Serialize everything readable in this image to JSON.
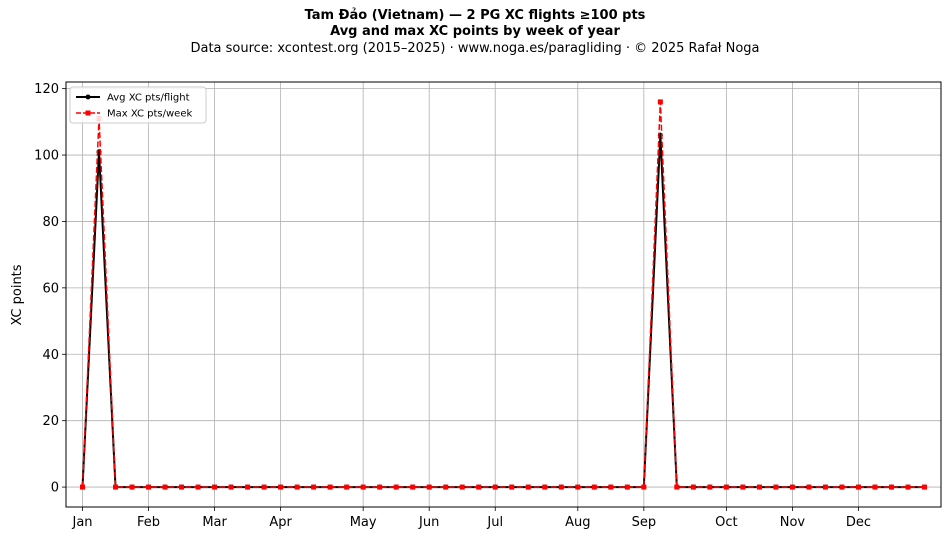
{
  "chart_data": {
    "type": "line",
    "title": "Tam Đảo (Vietnam)  —  2 PG XC flights ≥100 pts",
    "subtitle": "Avg and max XC points by week of year",
    "source_line": "Data source: xcontest.org (2015–2025)  ·  www.noga.es/paragliding  ·  © 2025 Rafał Noga",
    "xlabel": "",
    "ylabel": "XC points",
    "xlim": [
      0,
      53
    ],
    "ylim": [
      -6,
      122
    ],
    "grid": true,
    "legend_position": "top-left",
    "y_ticks": [
      0,
      20,
      40,
      60,
      80,
      100,
      120
    ],
    "x_ticks": [
      {
        "week": 1,
        "label": "Jan"
      },
      {
        "week": 5,
        "label": "Feb"
      },
      {
        "week": 9,
        "label": "Mar"
      },
      {
        "week": 13,
        "label": "Apr"
      },
      {
        "week": 18,
        "label": "May"
      },
      {
        "week": 22,
        "label": "Jun"
      },
      {
        "week": 26,
        "label": "Jul"
      },
      {
        "week": 31,
        "label": "Aug"
      },
      {
        "week": 35,
        "label": "Sep"
      },
      {
        "week": 40,
        "label": "Oct"
      },
      {
        "week": 44,
        "label": "Nov"
      },
      {
        "week": 48,
        "label": "Dec"
      }
    ],
    "x": [
      1,
      2,
      3,
      4,
      5,
      6,
      7,
      8,
      9,
      10,
      11,
      12,
      13,
      14,
      15,
      16,
      17,
      18,
      19,
      20,
      21,
      22,
      23,
      24,
      25,
      26,
      27,
      28,
      29,
      30,
      31,
      32,
      33,
      34,
      35,
      36,
      37,
      38,
      39,
      40,
      41,
      42,
      43,
      44,
      45,
      46,
      47,
      48,
      49,
      50,
      51,
      52
    ],
    "series": [
      {
        "name": "Avg XC pts/flight",
        "color": "#000000",
        "style": "solid",
        "marker": "circle",
        "values": [
          0,
          101,
          0,
          0,
          0,
          0,
          0,
          0,
          0,
          0,
          0,
          0,
          0,
          0,
          0,
          0,
          0,
          0,
          0,
          0,
          0,
          0,
          0,
          0,
          0,
          0,
          0,
          0,
          0,
          0,
          0,
          0,
          0,
          0,
          0,
          106,
          0,
          0,
          0,
          0,
          0,
          0,
          0,
          0,
          0,
          0,
          0,
          0,
          0,
          0,
          0,
          0
        ]
      },
      {
        "name": "Max XC pts/week",
        "color": "#ff0000",
        "style": "dashed",
        "marker": "square",
        "values": [
          0,
          111,
          0,
          0,
          0,
          0,
          0,
          0,
          0,
          0,
          0,
          0,
          0,
          0,
          0,
          0,
          0,
          0,
          0,
          0,
          0,
          0,
          0,
          0,
          0,
          0,
          0,
          0,
          0,
          0,
          0,
          0,
          0,
          0,
          0,
          116,
          0,
          0,
          0,
          0,
          0,
          0,
          0,
          0,
          0,
          0,
          0,
          0,
          0,
          0,
          0,
          0
        ]
      }
    ]
  }
}
